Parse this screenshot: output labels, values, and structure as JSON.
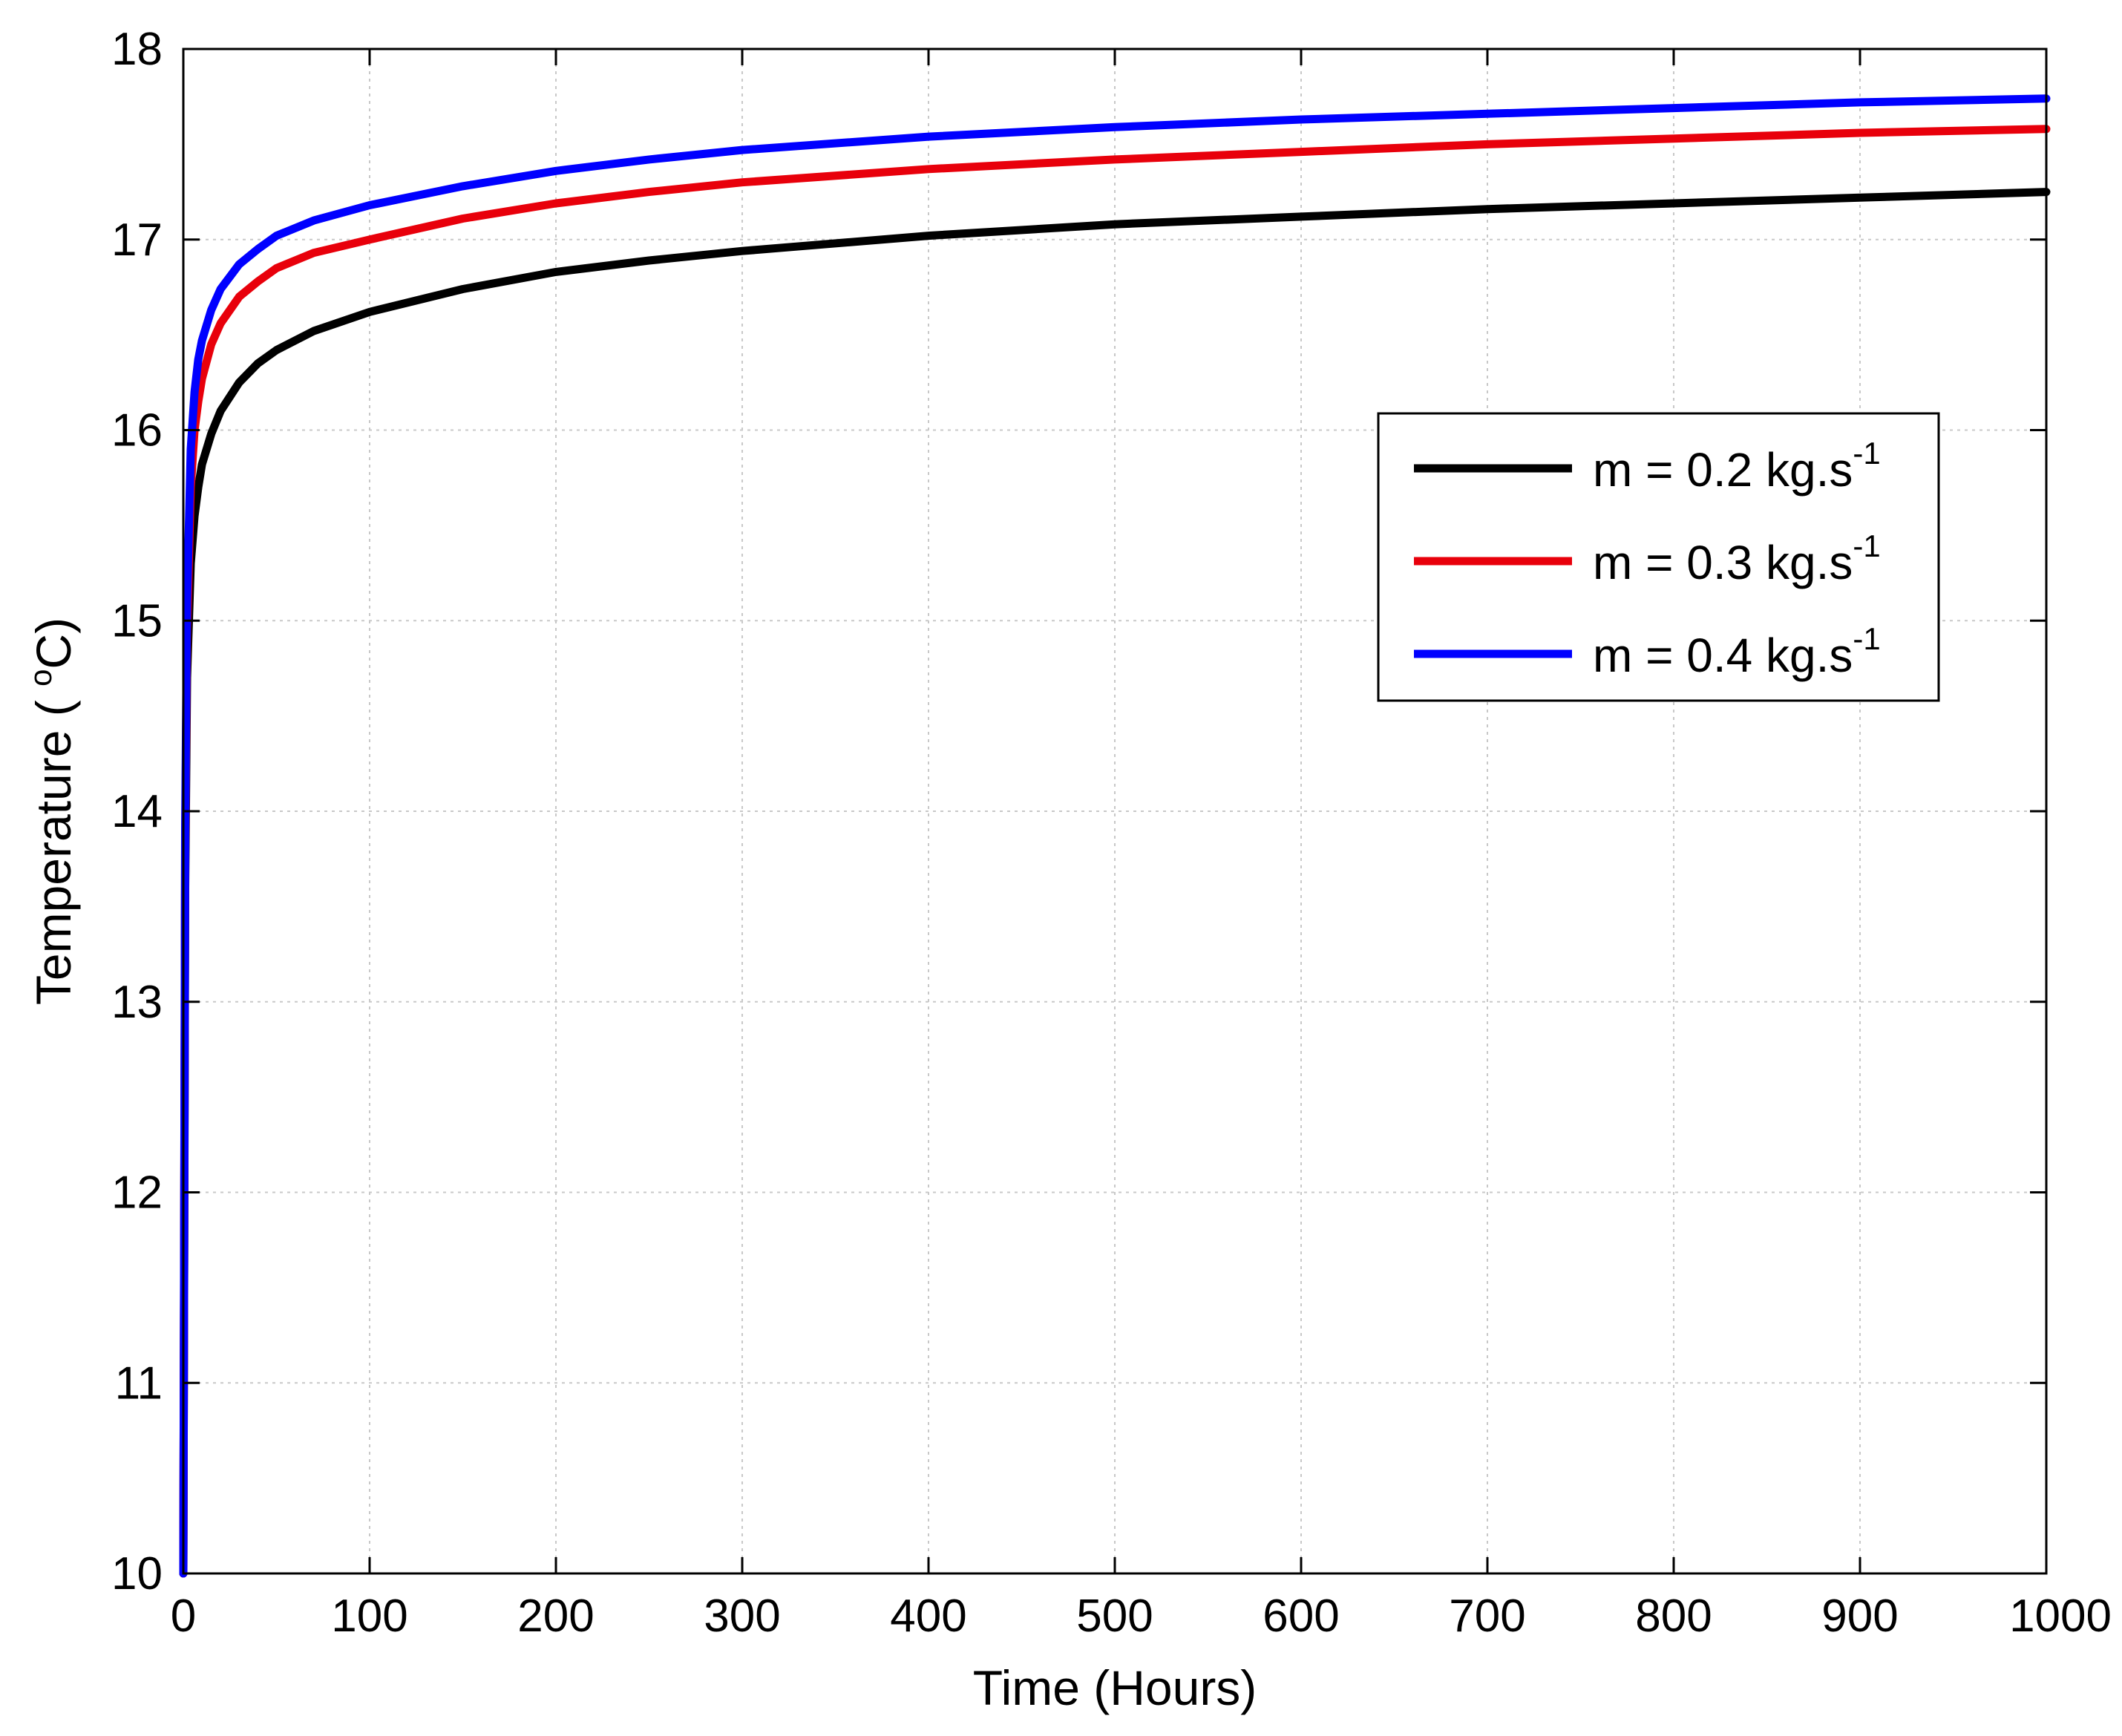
{
  "chart_data": {
    "type": "line",
    "title": "",
    "xlabel": "Time (Hours)",
    "ylabel_parts": {
      "before": "Temperature ( ",
      "sup": "o",
      "after": "C)"
    },
    "xlim": [
      0,
      1000
    ],
    "ylim": [
      10,
      18
    ],
    "xticks": [
      0,
      100,
      200,
      300,
      400,
      500,
      600,
      700,
      800,
      900,
      1000
    ],
    "yticks": [
      10,
      11,
      12,
      13,
      14,
      15,
      16,
      17,
      18
    ],
    "xtick_labels": [
      "0",
      "100",
      "200",
      "300",
      "400",
      "500",
      "600",
      "700",
      "800",
      "900",
      "1000"
    ],
    "ytick_labels": [
      "10",
      "11",
      "12",
      "13",
      "14",
      "15",
      "16",
      "17",
      "18"
    ],
    "grid": true,
    "legend_position": "upper-right",
    "series": [
      {
        "name": "m = 0.2 kg.s",
        "name_sup": "-1",
        "color": "#000000",
        "x": [
          0,
          1,
          2,
          4,
          6,
          8,
          10,
          15,
          20,
          30,
          40,
          50,
          70,
          100,
          150,
          200,
          250,
          300,
          400,
          500,
          600,
          700,
          800,
          900,
          1000
        ],
        "y": [
          10.0,
          13.6,
          14.7,
          15.3,
          15.55,
          15.7,
          15.82,
          15.98,
          16.1,
          16.25,
          16.35,
          16.42,
          16.52,
          16.62,
          16.74,
          16.83,
          16.89,
          16.94,
          17.02,
          17.08,
          17.12,
          17.16,
          17.19,
          17.22,
          17.25
        ]
      },
      {
        "name": "m = 0.3 kg.s",
        "name_sup": "-1",
        "color": "#e8000b",
        "x": [
          0,
          1,
          2,
          4,
          6,
          8,
          10,
          15,
          20,
          30,
          40,
          50,
          70,
          100,
          150,
          200,
          250,
          300,
          400,
          500,
          600,
          700,
          800,
          900,
          1000
        ],
        "y": [
          10.0,
          13.8,
          14.95,
          15.7,
          16.0,
          16.15,
          16.27,
          16.45,
          16.56,
          16.7,
          16.78,
          16.85,
          16.93,
          17.0,
          17.11,
          17.19,
          17.25,
          17.3,
          17.37,
          17.42,
          17.46,
          17.5,
          17.53,
          17.56,
          17.58
        ]
      },
      {
        "name": "m = 0.4 kg.s",
        "name_sup": "-1",
        "color": "#0000ff",
        "x": [
          0,
          1,
          2,
          4,
          6,
          8,
          10,
          15,
          20,
          30,
          40,
          50,
          70,
          100,
          150,
          200,
          250,
          300,
          400,
          500,
          600,
          700,
          800,
          900,
          1000
        ],
        "y": [
          10.0,
          13.9,
          15.1,
          15.9,
          16.2,
          16.37,
          16.47,
          16.63,
          16.74,
          16.87,
          16.95,
          17.02,
          17.1,
          17.18,
          17.28,
          17.36,
          17.42,
          17.47,
          17.54,
          17.59,
          17.63,
          17.66,
          17.69,
          17.72,
          17.74
        ]
      }
    ]
  }
}
